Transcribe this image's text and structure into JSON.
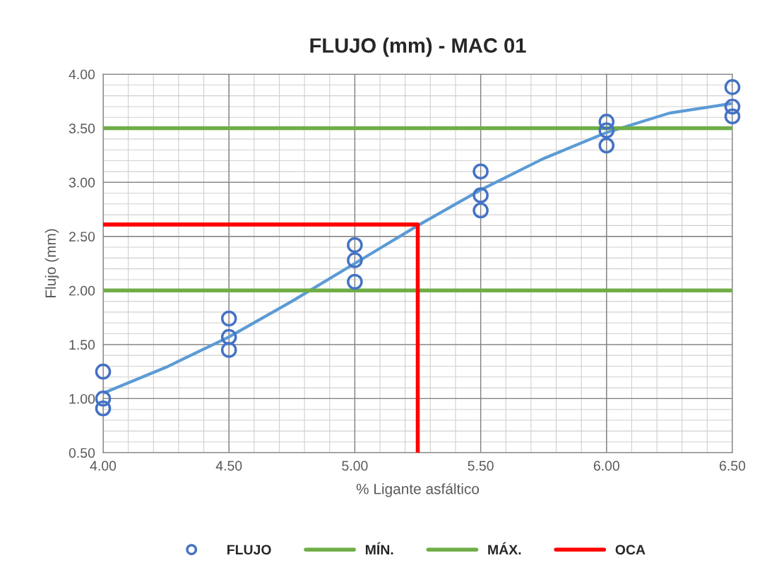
{
  "chart_data": {
    "type": "scatter",
    "title": "FLUJO (mm) - MAC 01",
    "xlabel": "% Ligante asfáltico",
    "ylabel": "Flujo (mm)",
    "xlim": [
      4.0,
      6.5
    ],
    "xticks": [
      {
        "value": 4.0,
        "label": "4.00"
      },
      {
        "value": 4.5,
        "label": "4.50"
      },
      {
        "value": 5.0,
        "label": "5.00"
      },
      {
        "value": 5.5,
        "label": "5.50"
      },
      {
        "value": 6.0,
        "label": "6.00"
      },
      {
        "value": 6.5,
        "label": "6.50"
      }
    ],
    "ylim": [
      0.5,
      4.0
    ],
    "yticks": [
      {
        "value": 0.5,
        "label": "0.50"
      },
      {
        "value": 1.0,
        "label": "1.00"
      },
      {
        "value": 1.5,
        "label": "1.50"
      },
      {
        "value": 2.0,
        "label": "2.00"
      },
      {
        "value": 2.5,
        "label": "2.50"
      },
      {
        "value": 3.0,
        "label": "3.00"
      },
      {
        "value": 3.5,
        "label": "3.50"
      },
      {
        "value": 4.0,
        "label": "4.00"
      }
    ],
    "grid": true,
    "legend": "bottom",
    "series": [
      {
        "name": "FLUJO",
        "marker": "circle",
        "color": "#4472c4",
        "x": [
          4.0,
          4.0,
          4.0,
          4.5,
          4.5,
          4.5,
          5.0,
          5.0,
          5.0,
          5.5,
          5.5,
          5.5,
          6.0,
          6.0,
          6.0,
          6.5,
          6.5,
          6.5
        ],
        "values": [
          1.25,
          1.0,
          0.91,
          1.74,
          1.57,
          1.45,
          2.42,
          2.28,
          2.08,
          3.1,
          2.88,
          2.74,
          3.56,
          3.48,
          3.34,
          3.88,
          3.7,
          3.61
        ]
      },
      {
        "type": "line",
        "color": "#5b9bd5",
        "x": [
          4.0,
          4.25,
          4.5,
          4.75,
          5.0,
          5.25,
          5.5,
          5.75,
          6.0,
          6.25,
          6.5
        ],
        "values": [
          1.05,
          1.29,
          1.57,
          1.9,
          2.25,
          2.6,
          2.93,
          3.22,
          3.46,
          3.64,
          3.73
        ]
      },
      {
        "name": "MÍN.",
        "type": "line",
        "color": "#70ad47",
        "x": [
          4.0,
          6.5
        ],
        "values": [
          2.0,
          2.0
        ]
      },
      {
        "name": "MÁX.",
        "type": "line",
        "color": "#70ad47",
        "x": [
          4.0,
          6.5
        ],
        "values": [
          3.5,
          3.5
        ]
      },
      {
        "name": "OCA",
        "type": "line",
        "color": "#ff0000",
        "x": [
          4.0,
          5.25,
          5.25
        ],
        "values": [
          2.61,
          2.61,
          0.5
        ]
      }
    ]
  }
}
